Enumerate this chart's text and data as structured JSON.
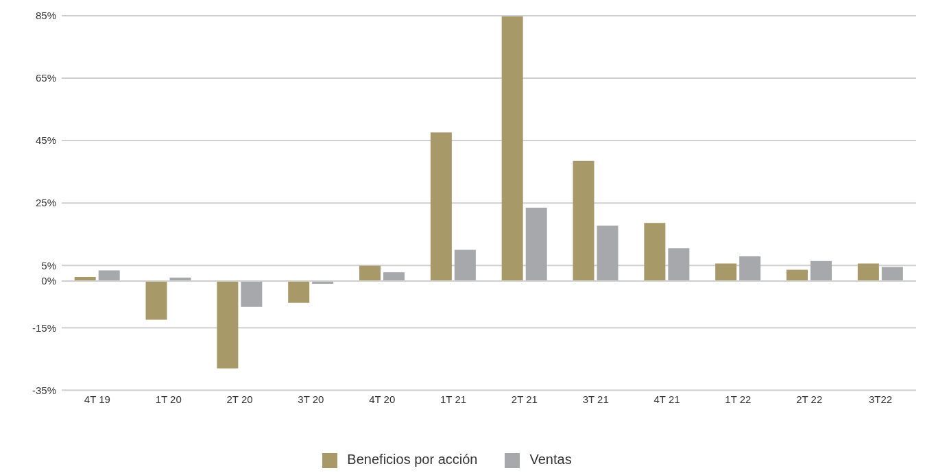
{
  "chart_data": {
    "type": "bar",
    "categories": [
      "4T 19",
      "1T 20",
      "2T 20",
      "3T 20",
      "4T 20",
      "1T 21",
      "2T 21",
      "3T 21",
      "4T 21",
      "1T 22",
      "2T 22",
      "3T22"
    ],
    "series": [
      {
        "name": "Beneficios por acción",
        "color": "#a89968",
        "values": [
          1.3,
          -12.4,
          -28,
          -7,
          4.9,
          47.6,
          84.8,
          38.5,
          18.6,
          5.6,
          3.6,
          5.6
        ]
      },
      {
        "name": "Ventas",
        "color": "#a7a8ac",
        "values": [
          3.4,
          1.1,
          -8.3,
          -0.9,
          2.8,
          10,
          23.5,
          17.7,
          10.5,
          7.9,
          6.4,
          4.5
        ]
      }
    ],
    "ylim": [
      -35,
      85
    ],
    "yticks": [
      {
        "value": -35,
        "label": "-35%"
      },
      {
        "value": -15,
        "label": "-15%"
      },
      {
        "value": 0,
        "label": "0%"
      },
      {
        "value": 5,
        "label": "5%"
      },
      {
        "value": 25,
        "label": "25%"
      },
      {
        "value": 45,
        "label": "45%"
      },
      {
        "value": 65,
        "label": "65%"
      },
      {
        "value": 85,
        "label": "85%"
      }
    ],
    "grid": "y",
    "legend": "bottom"
  }
}
